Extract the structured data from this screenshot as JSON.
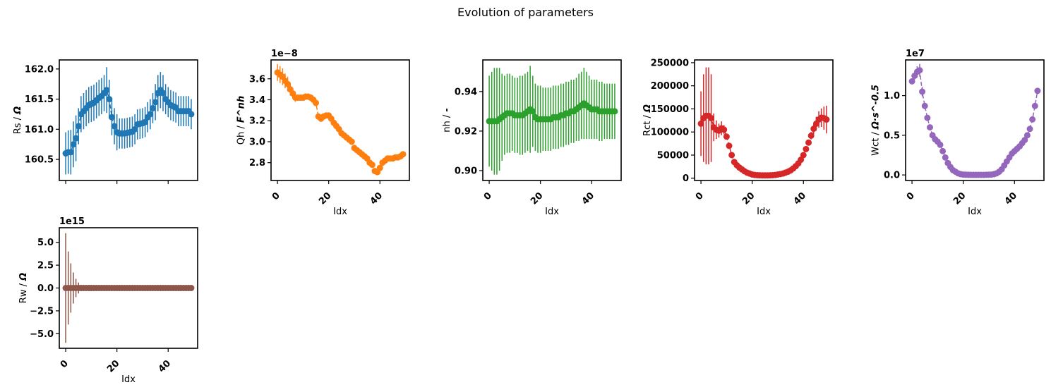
{
  "suptitle": "Evolution of parameters",
  "chart_data": [
    {
      "type": "scatter",
      "ylabel": "Rs / Ω",
      "xlabel": "",
      "offset": "",
      "color": "#1f77b4",
      "ylim": [
        160.15,
        162.15
      ],
      "xlim": [
        -2.5,
        51.5
      ],
      "yticks": [
        "160.5",
        "161.0",
        "161.5",
        "162.0"
      ],
      "ytick_values": [
        160.5,
        161.0,
        161.5,
        162.0
      ],
      "xticks": [],
      "x": [
        0,
        1,
        2,
        3,
        4,
        5,
        6,
        7,
        8,
        9,
        10,
        11,
        12,
        13,
        14,
        15,
        16,
        17,
        18,
        19,
        20,
        21,
        22,
        23,
        24,
        25,
        26,
        27,
        28,
        29,
        30,
        31,
        32,
        33,
        34,
        35,
        36,
        37,
        38,
        39,
        40,
        41,
        42,
        43,
        44,
        45,
        46,
        47,
        48,
        49
      ],
      "y": [
        160.6,
        160.62,
        160.62,
        160.75,
        160.85,
        161.05,
        161.25,
        161.3,
        161.35,
        161.4,
        161.42,
        161.44,
        161.48,
        161.52,
        161.55,
        161.6,
        161.65,
        161.5,
        161.2,
        161.05,
        160.95,
        160.93,
        160.93,
        160.93,
        160.94,
        160.95,
        160.96,
        161.0,
        161.08,
        161.09,
        161.1,
        161.12,
        161.2,
        161.25,
        161.35,
        161.45,
        161.6,
        161.65,
        161.6,
        161.5,
        161.45,
        161.4,
        161.38,
        161.36,
        161.3,
        161.3,
        161.3,
        161.3,
        161.3,
        161.25
      ],
      "err": [
        0.35,
        0.36,
        0.37,
        0.38,
        0.38,
        0.3,
        0.3,
        0.3,
        0.3,
        0.3,
        0.3,
        0.3,
        0.3,
        0.3,
        0.3,
        0.3,
        0.38,
        0.32,
        0.3,
        0.3,
        0.3,
        0.25,
        0.25,
        0.25,
        0.25,
        0.25,
        0.25,
        0.25,
        0.25,
        0.25,
        0.25,
        0.25,
        0.25,
        0.25,
        0.25,
        0.3,
        0.3,
        0.3,
        0.3,
        0.25,
        0.25,
        0.25,
        0.25,
        0.25,
        0.25,
        0.25,
        0.25,
        0.25,
        0.25,
        0.25
      ]
    },
    {
      "type": "scatter",
      "ylabel": "Qh / F^nh",
      "xlabel": "Idx",
      "offset": "1e−8",
      "color": "#ff7f0e",
      "ylim": [
        2.63,
        3.78
      ],
      "xlim": [
        -2.5,
        51.5
      ],
      "yticks": [
        "2.8",
        "3.0",
        "3.2",
        "3.4",
        "3.6"
      ],
      "ytick_values": [
        2.8,
        3.0,
        3.2,
        3.4,
        3.6
      ],
      "xticks": [
        "0",
        "20",
        "40"
      ],
      "xtick_values": [
        0,
        20,
        40
      ],
      "x": [
        0,
        1,
        2,
        3,
        4,
        5,
        6,
        7,
        8,
        9,
        10,
        11,
        12,
        13,
        14,
        15,
        16,
        17,
        18,
        19,
        20,
        21,
        22,
        23,
        24,
        25,
        26,
        27,
        28,
        29,
        30,
        31,
        32,
        33,
        34,
        35,
        36,
        37,
        38,
        39,
        40,
        41,
        42,
        43,
        44,
        45,
        46,
        47,
        48,
        49
      ],
      "y": [
        3.66,
        3.64,
        3.62,
        3.58,
        3.55,
        3.5,
        3.46,
        3.42,
        3.42,
        3.42,
        3.42,
        3.43,
        3.43,
        3.42,
        3.4,
        3.37,
        3.24,
        3.22,
        3.24,
        3.25,
        3.25,
        3.22,
        3.18,
        3.15,
        3.12,
        3.08,
        3.06,
        3.04,
        3.02,
        3.0,
        2.94,
        2.92,
        2.9,
        2.88,
        2.86,
        2.84,
        2.8,
        2.78,
        2.72,
        2.71,
        2.75,
        2.8,
        2.82,
        2.84,
        2.84,
        2.84,
        2.85,
        2.85,
        2.86,
        2.88
      ],
      "err": [
        0.08,
        0.08,
        0.08,
        0.07,
        0.07,
        0.06,
        0.05,
        0.04,
        0.03,
        0.03,
        0.03,
        0.03,
        0.03,
        0.03,
        0.03,
        0.03,
        0.03,
        0.03,
        0.02,
        0.02,
        0.02,
        0.02,
        0.02,
        0.02,
        0.02,
        0.02,
        0.02,
        0.02,
        0.02,
        0.02,
        0.02,
        0.02,
        0.02,
        0.02,
        0.02,
        0.02,
        0.02,
        0.02,
        0.02,
        0.02,
        0.02,
        0.02,
        0.02,
        0.02,
        0.02,
        0.02,
        0.02,
        0.02,
        0.02,
        0.03
      ]
    },
    {
      "type": "scatter",
      "ylabel": "nh / -",
      "xlabel": "Idx",
      "offset": "",
      "color": "#2ca02c",
      "ylim": [
        0.895,
        0.956
      ],
      "xlim": [
        -2.5,
        51.5
      ],
      "yticks": [
        "0.90",
        "0.92",
        "0.94"
      ],
      "ytick_values": [
        0.9,
        0.92,
        0.94
      ],
      "xticks": [
        "0",
        "20",
        "40"
      ],
      "xtick_values": [
        0,
        20,
        40
      ],
      "x": [
        0,
        1,
        2,
        3,
        4,
        5,
        6,
        7,
        8,
        9,
        10,
        11,
        12,
        13,
        14,
        15,
        16,
        17,
        18,
        19,
        20,
        21,
        22,
        23,
        24,
        25,
        26,
        27,
        28,
        29,
        30,
        31,
        32,
        33,
        34,
        35,
        36,
        37,
        38,
        39,
        40,
        41,
        42,
        43,
        44,
        45,
        46,
        47,
        48,
        49
      ],
      "y": [
        0.925,
        0.925,
        0.925,
        0.925,
        0.926,
        0.927,
        0.928,
        0.929,
        0.929,
        0.929,
        0.928,
        0.928,
        0.928,
        0.928,
        0.929,
        0.93,
        0.931,
        0.93,
        0.927,
        0.926,
        0.926,
        0.926,
        0.926,
        0.926,
        0.926,
        0.927,
        0.927,
        0.927,
        0.928,
        0.928,
        0.929,
        0.929,
        0.93,
        0.93,
        0.931,
        0.932,
        0.933,
        0.934,
        0.933,
        0.932,
        0.931,
        0.931,
        0.931,
        0.93,
        0.93,
        0.93,
        0.93,
        0.93,
        0.93,
        0.93
      ],
      "err": [
        0.023,
        0.025,
        0.027,
        0.027,
        0.026,
        0.022,
        0.02,
        0.02,
        0.02,
        0.019,
        0.019,
        0.019,
        0.02,
        0.02,
        0.02,
        0.02,
        0.022,
        0.018,
        0.017,
        0.017,
        0.017,
        0.016,
        0.016,
        0.016,
        0.016,
        0.016,
        0.016,
        0.016,
        0.016,
        0.016,
        0.016,
        0.016,
        0.016,
        0.016,
        0.016,
        0.017,
        0.017,
        0.018,
        0.017,
        0.016,
        0.015,
        0.015,
        0.015,
        0.015,
        0.015,
        0.014,
        0.014,
        0.014,
        0.014,
        0.014
      ]
    },
    {
      "type": "scatter",
      "ylabel": "Rct / Ω",
      "xlabel": "Idx",
      "offset": "",
      "color": "#d62728",
      "ylim": [
        -5000,
        256000
      ],
      "xlim": [
        -2.5,
        51.5
      ],
      "yticks": [
        "0",
        "50000",
        "100000",
        "150000",
        "200000",
        "250000"
      ],
      "ytick_values": [
        0,
        50000,
        100000,
        150000,
        200000,
        250000
      ],
      "xticks": [
        "0",
        "20",
        "40"
      ],
      "xtick_values": [
        0,
        20,
        40
      ],
      "x": [
        0,
        1,
        2,
        3,
        4,
        5,
        6,
        7,
        8,
        9,
        10,
        11,
        12,
        13,
        14,
        15,
        16,
        17,
        18,
        19,
        20,
        21,
        22,
        23,
        24,
        25,
        26,
        27,
        28,
        29,
        30,
        31,
        32,
        33,
        34,
        35,
        36,
        37,
        38,
        39,
        40,
        41,
        42,
        43,
        44,
        45,
        46,
        47,
        48,
        49
      ],
      "y": [
        118000,
        130000,
        135000,
        135000,
        130000,
        110000,
        105000,
        103000,
        108000,
        105000,
        90000,
        70000,
        50000,
        35000,
        28000,
        23000,
        19000,
        15000,
        12000,
        10000,
        8000,
        7000,
        6500,
        6200,
        6000,
        6000,
        6000,
        6200,
        6500,
        7000,
        8000,
        9000,
        10000,
        12000,
        14000,
        17000,
        21000,
        26000,
        32000,
        40000,
        50000,
        63000,
        77000,
        92000,
        107000,
        118000,
        127000,
        131000,
        130000,
        127000
      ],
      "err": [
        70000,
        95000,
        105000,
        105000,
        95000,
        30000,
        20000,
        15000,
        15000,
        10000,
        5000,
        3000,
        2000,
        1000,
        1000,
        1000,
        800,
        700,
        600,
        500,
        400,
        400,
        400,
        300,
        300,
        300,
        300,
        300,
        400,
        400,
        500,
        600,
        700,
        800,
        1000,
        1000,
        1000,
        1500,
        2000,
        2500,
        3000,
        4000,
        5000,
        8000,
        12000,
        15000,
        18000,
        20000,
        25000,
        30000
      ]
    },
    {
      "type": "scatter",
      "ylabel": "Wct / Ω·s^-0.5",
      "xlabel": "Idx",
      "offset": "1e7",
      "color": "#9467bd",
      "ylim": [
        -0.07,
        1.45
      ],
      "xlim": [
        -2.5,
        51.5
      ],
      "yticks": [
        "0.0",
        "0.5",
        "1.0"
      ],
      "ytick_values": [
        0.0,
        0.5,
        1.0
      ],
      "xticks": [
        "0",
        "20",
        "40"
      ],
      "xtick_values": [
        0,
        20,
        40
      ],
      "x": [
        0,
        1,
        2,
        3,
        4,
        5,
        6,
        7,
        8,
        9,
        10,
        11,
        12,
        13,
        14,
        15,
        16,
        17,
        18,
        19,
        20,
        21,
        22,
        23,
        24,
        25,
        26,
        27,
        28,
        29,
        30,
        31,
        32,
        33,
        34,
        35,
        36,
        37,
        38,
        39,
        40,
        41,
        42,
        43,
        44,
        45,
        46,
        47,
        48,
        49
      ],
      "y": [
        1.18,
        1.25,
        1.3,
        1.32,
        1.05,
        0.87,
        0.72,
        0.6,
        0.5,
        0.45,
        0.42,
        0.38,
        0.3,
        0.22,
        0.15,
        0.1,
        0.06,
        0.04,
        0.02,
        0.01,
        0.005,
        0.003,
        0.002,
        0.001,
        0.001,
        0.001,
        0.001,
        0.001,
        0.001,
        0.002,
        0.003,
        0.005,
        0.01,
        0.02,
        0.04,
        0.07,
        0.12,
        0.17,
        0.22,
        0.27,
        0.3,
        0.33,
        0.36,
        0.4,
        0.44,
        0.5,
        0.58,
        0.7,
        0.87,
        1.06
      ],
      "err": [
        0.03,
        0.05,
        0.07,
        0.08,
        0.06,
        0.04,
        0.03,
        0.02,
        0.02,
        0.02,
        0.02,
        0.02,
        0.01,
        0.01,
        0.01,
        0.01,
        0.01,
        0.01,
        0.01,
        0.01,
        0.01,
        0.01,
        0.01,
        0.01,
        0.01,
        0.01,
        0.01,
        0.01,
        0.01,
        0.01,
        0.01,
        0.01,
        0.01,
        0.01,
        0.01,
        0.01,
        0.01,
        0.01,
        0.01,
        0.01,
        0.01,
        0.01,
        0.01,
        0.01,
        0.01,
        0.01,
        0.02,
        0.03,
        0.03,
        0.03
      ]
    },
    {
      "type": "scatter",
      "ylabel": "Rw / Ω",
      "xlabel": "Idx",
      "offset": "1e15",
      "color": "#8c564b",
      "ylim": [
        -6.6,
        6.6
      ],
      "xlim": [
        -2.5,
        51.5
      ],
      "yticks": [
        "−5.0",
        "−2.5",
        "0.0",
        "2.5",
        "5.0"
      ],
      "ytick_values": [
        -5.0,
        -2.5,
        0.0,
        2.5,
        5.0
      ],
      "xticks": [
        "0",
        "20",
        "40"
      ],
      "xtick_values": [
        0,
        20,
        40
      ],
      "x": [
        0,
        1,
        2,
        3,
        4,
        5,
        6,
        7,
        8,
        9,
        10,
        11,
        12,
        13,
        14,
        15,
        16,
        17,
        18,
        19,
        20,
        21,
        22,
        23,
        24,
        25,
        26,
        27,
        28,
        29,
        30,
        31,
        32,
        33,
        34,
        35,
        36,
        37,
        38,
        39,
        40,
        41,
        42,
        43,
        44,
        45,
        46,
        47,
        48,
        49
      ],
      "y": [
        0,
        0,
        0,
        0,
        0,
        0,
        0,
        0,
        0,
        0,
        0,
        0,
        0,
        0,
        0,
        0,
        0,
        0,
        0,
        0,
        0,
        0,
        0,
        0,
        0,
        0,
        0,
        0,
        0,
        0,
        0,
        0,
        0,
        0,
        0,
        0,
        0,
        0,
        0,
        0,
        0,
        0,
        0,
        0,
        0,
        0,
        0,
        0,
        0,
        0
      ],
      "err": [
        6.0,
        4.0,
        2.7,
        1.7,
        1.0,
        0.6,
        0.35,
        0.2,
        0.12,
        0.08,
        0.05,
        0.03,
        0.02,
        0.01,
        0.01,
        0.01,
        0.01,
        0.01,
        0.01,
        0.01,
        0.01,
        0.01,
        0.01,
        0.01,
        0.01,
        0.01,
        0.01,
        0.01,
        0.01,
        0.01,
        0.01,
        0.01,
        0.01,
        0.01,
        0.01,
        0.01,
        0.01,
        0.01,
        0.01,
        0.01,
        0.01,
        0.01,
        0.01,
        0.01,
        0.01,
        0.01,
        0.01,
        0.01,
        0.01,
        0.01
      ]
    }
  ]
}
